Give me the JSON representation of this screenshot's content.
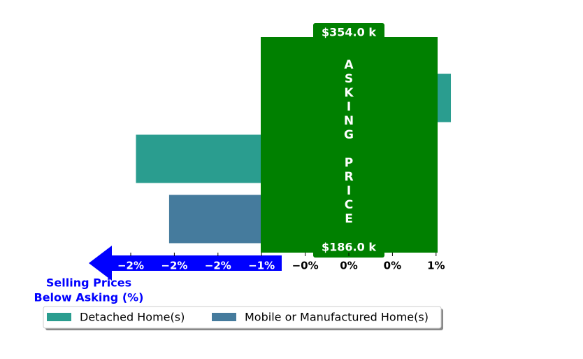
{
  "chart_data": {
    "type": "barh",
    "categories": [
      null,
      null,
      null
    ],
    "series": [
      {
        "name": "Detached Home(s)",
        "color": "#2a9d8f",
        "values": [
          1.17,
          -2.44,
          null
        ]
      },
      {
        "name": "Mobile or Manufactured Home(s)",
        "color": "#457b9d",
        "values": [
          null,
          null,
          -2.06
        ]
      }
    ],
    "xlim": [
      -3.0,
      1.5
    ],
    "xticks": [
      {
        "value": -2.5,
        "label": "−2%"
      },
      {
        "value": -2.0,
        "label": "−2%"
      },
      {
        "value": -1.5,
        "label": "−2%"
      },
      {
        "value": -1.0,
        "label": "−1%"
      },
      {
        "value": -0.5,
        "label": "−0%"
      },
      {
        "value": 0,
        "label": "0%"
      },
      {
        "value": 0.5,
        "label": "0%"
      },
      {
        "value": 1.0,
        "label": "1%"
      }
    ],
    "annotations": {
      "band_text": "ASKING PRICE",
      "top_price": "$354.0 k",
      "bottom_price": "$186.0 k",
      "arrow_label": [
        "Selling Prices",
        "Below Asking (%)"
      ]
    },
    "band_color": "#008000",
    "arrow_color": "#0000ff"
  }
}
